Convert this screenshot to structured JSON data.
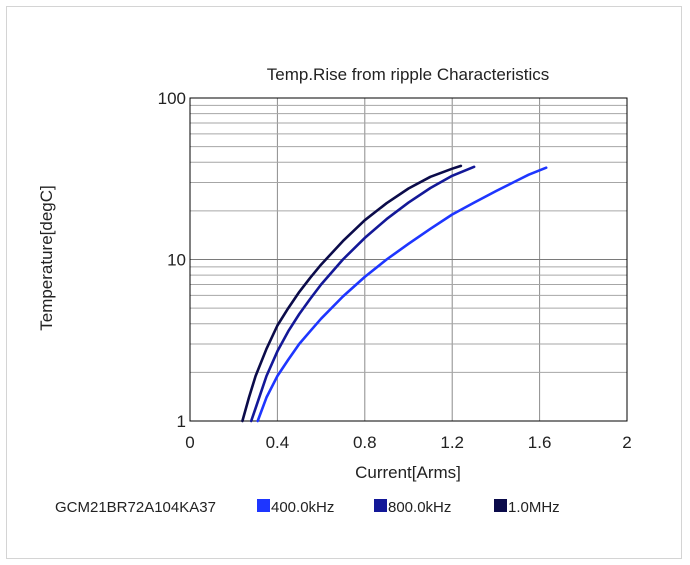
{
  "chart_data": {
    "type": "line",
    "title": "Temp.Rise from ripple Characteristics",
    "xlabel": "Current[Arms]",
    "ylabel": "Temperature[degC]",
    "xlim": [
      0,
      2
    ],
    "ylim": [
      1,
      100
    ],
    "yscale": "log",
    "grid": true,
    "x_ticks": [
      "0",
      "0.4",
      "0.8",
      "1.2",
      "1.6",
      "2"
    ],
    "y_ticks": [
      "1",
      "10",
      "100"
    ],
    "legend": {
      "placement": "bottom",
      "part_number": "GCM21BR72A104KA37"
    },
    "series": [
      {
        "name": "400.0kHz",
        "color": "#1e36ff",
        "x": [
          0.31,
          0.35,
          0.4,
          0.45,
          0.5,
          0.55,
          0.6,
          0.7,
          0.8,
          0.9,
          1.0,
          1.1,
          1.2,
          1.3,
          1.4,
          1.5,
          1.55,
          1.63
        ],
        "y": [
          1.0,
          1.4,
          1.9,
          2.4,
          3.0,
          3.6,
          4.3,
          5.9,
          7.8,
          10.0,
          12.5,
          15.5,
          19.0,
          22.5,
          26.5,
          31.0,
          33.5,
          37.0
        ]
      },
      {
        "name": "800.0kHz",
        "color": "#131898",
        "x": [
          0.28,
          0.3,
          0.35,
          0.4,
          0.45,
          0.5,
          0.55,
          0.6,
          0.7,
          0.8,
          0.9,
          1.0,
          1.1,
          1.2,
          1.3
        ],
        "y": [
          1.0,
          1.2,
          1.9,
          2.7,
          3.6,
          4.6,
          5.7,
          7.0,
          10.0,
          13.6,
          17.8,
          22.5,
          27.7,
          33.0,
          37.5
        ]
      },
      {
        "name": "1.0MHz",
        "color": "#0b0b4a",
        "x": [
          0.24,
          0.27,
          0.3,
          0.35,
          0.4,
          0.45,
          0.5,
          0.55,
          0.6,
          0.7,
          0.8,
          0.9,
          1.0,
          1.1,
          1.2,
          1.24
        ],
        "y": [
          1.0,
          1.4,
          1.9,
          2.8,
          3.9,
          5.0,
          6.3,
          7.7,
          9.3,
          13.0,
          17.5,
          22.3,
          27.5,
          32.5,
          36.5,
          38.0
        ]
      }
    ]
  }
}
